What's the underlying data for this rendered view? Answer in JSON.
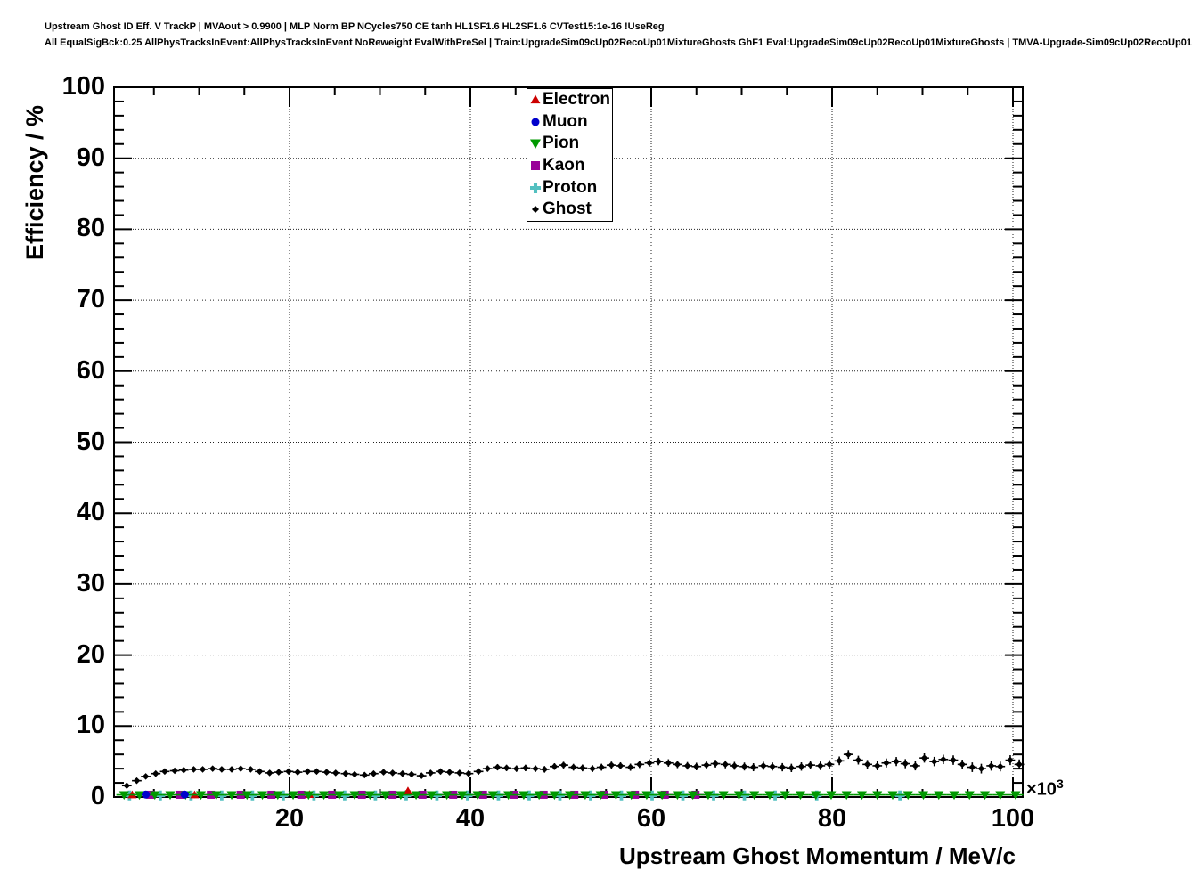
{
  "header": {
    "line1": "Upstream Ghost ID Eff. V TrackP | MVAout > 0.9900 | MLP Norm BP NCycles750 CE tanh HL1SF1.6 HL2SF1.6 CVTest15:1e-16 !UseReg",
    "line2": "All EqualSigBck:0.25 AllPhysTracksInEvent:AllPhysTracksInEvent NoReweight EvalWithPreSel | Train:UpgradeSim09cUp02RecoUp01MixtureGhosts GhF1 Eval:UpgradeSim09cUp02RecoUp01MixtureGhosts | TMVA-Upgrade-Sim09cUp02RecoUp01"
  },
  "axes": {
    "y_title": "Efficiency / %",
    "x_title": "Upstream Ghost Momentum / MeV/c",
    "x_multiplier": "×10",
    "x_exponent": "3",
    "y_major_ticks": [
      0,
      10,
      20,
      30,
      40,
      50,
      60,
      70,
      80,
      90,
      100
    ],
    "y_minor_step": 2,
    "x_major_ticks": [
      20,
      40,
      60,
      80,
      100
    ],
    "x_minor_step": 5
  },
  "chart_data": {
    "type": "scatter",
    "title": "",
    "xlabel": "Upstream Ghost Momentum / MeV/c",
    "x_unit_multiplier": 1000,
    "ylabel": "Efficiency / %",
    "xlim": [
      0.6,
      101.1
    ],
    "ylim": [
      0,
      100
    ],
    "grid": "dotted",
    "legend_position": "top-center",
    "series": [
      {
        "name": "Electron",
        "color": "#cc0000",
        "marker": "triangle-up",
        "xerr": 0.3,
        "yerr": 0.45,
        "points": [
          [
            2.6,
            0.3
          ],
          [
            9.5,
            0.3
          ],
          [
            22.2,
            0.35
          ],
          [
            33.1,
            0.85
          ]
        ]
      },
      {
        "name": "Muon",
        "color": "#0000cc",
        "marker": "circle",
        "xerr": 0.45,
        "yerr": 0.15,
        "points": [
          [
            4.1,
            0.35
          ],
          [
            8.4,
            0.35
          ]
        ]
      },
      {
        "name": "Pion",
        "color": "#009900",
        "marker": "triangle-down",
        "xerr": 0.85,
        "yerr": 0.12,
        "y": 0.3,
        "x": [
          1.7,
          3.4,
          5.1,
          6.8,
          8.5,
          10.2,
          11.9,
          13.6,
          15.3,
          17.0,
          18.7,
          20.4,
          22.1,
          23.8,
          25.5,
          27.2,
          28.9,
          30.6,
          32.3,
          34.0,
          35.7,
          37.4,
          39.1,
          40.8,
          42.5,
          44.2,
          45.9,
          47.6,
          49.3,
          51.0,
          52.7,
          54.4,
          56.1,
          57.8,
          59.5,
          61.2,
          62.9,
          64.6,
          66.3,
          68.0,
          69.7,
          71.4,
          73.1,
          74.8,
          76.5,
          78.2,
          79.9,
          81.6,
          83.3,
          85.0,
          86.7,
          88.4,
          90.1,
          91.8,
          93.5,
          95.2,
          96.9,
          98.6,
          100.3
        ]
      },
      {
        "name": "Kaon",
        "color": "#990099",
        "marker": "square",
        "xerr": 1.68,
        "yerr": 0.12,
        "y": 0.32,
        "x": [
          4.6,
          7.9,
          11.3,
          14.6,
          18.0,
          21.3,
          24.7,
          28.0,
          31.4,
          34.7,
          38.1,
          41.4,
          44.8,
          48.1,
          51.5,
          54.8,
          58.2,
          61.5,
          64.9
        ]
      },
      {
        "name": "Proton",
        "color": "#53c0c0",
        "marker": "cross",
        "xerr": 0.4,
        "yerr": 0.12,
        "y": 0.22,
        "x": [
          2.3,
          5.7,
          9.1,
          12.5,
          15.9,
          19.3,
          22.7,
          26.1,
          29.5,
          32.9,
          36.3,
          39.7,
          43.1,
          46.5,
          49.9,
          53.3,
          56.7,
          60.1,
          63.5,
          66.9,
          70.3,
          73.7,
          78.3,
          87.5
        ]
      },
      {
        "name": "Ghost",
        "color": "#000000",
        "marker": "diamond",
        "xerr": 0.53,
        "yerr_ramp": [
          0.25,
          0.7
        ],
        "points": [
          [
            2.0,
            1.6
          ],
          [
            3.1,
            2.3
          ],
          [
            4.1,
            2.9
          ],
          [
            5.2,
            3.3
          ],
          [
            6.2,
            3.6
          ],
          [
            7.3,
            3.7
          ],
          [
            8.3,
            3.8
          ],
          [
            9.4,
            3.9
          ],
          [
            10.4,
            3.9
          ],
          [
            11.5,
            4.0
          ],
          [
            12.5,
            3.9
          ],
          [
            13.6,
            3.9
          ],
          [
            14.6,
            4.0
          ],
          [
            15.7,
            3.9
          ],
          [
            16.7,
            3.6
          ],
          [
            17.8,
            3.4
          ],
          [
            18.8,
            3.5
          ],
          [
            19.9,
            3.6
          ],
          [
            20.9,
            3.5
          ],
          [
            22.0,
            3.6
          ],
          [
            23.0,
            3.6
          ],
          [
            24.1,
            3.5
          ],
          [
            25.1,
            3.4
          ],
          [
            26.2,
            3.3
          ],
          [
            27.2,
            3.2
          ],
          [
            28.3,
            3.1
          ],
          [
            29.3,
            3.3
          ],
          [
            30.4,
            3.5
          ],
          [
            31.4,
            3.4
          ],
          [
            32.5,
            3.3
          ],
          [
            33.5,
            3.2
          ],
          [
            34.6,
            3.0
          ],
          [
            35.6,
            3.4
          ],
          [
            36.7,
            3.6
          ],
          [
            37.7,
            3.5
          ],
          [
            38.8,
            3.4
          ],
          [
            39.8,
            3.3
          ],
          [
            40.9,
            3.6
          ],
          [
            41.9,
            4.0
          ],
          [
            43.0,
            4.2
          ],
          [
            44.0,
            4.1
          ],
          [
            45.1,
            4.0
          ],
          [
            46.1,
            4.1
          ],
          [
            47.2,
            4.0
          ],
          [
            48.2,
            3.9
          ],
          [
            49.3,
            4.3
          ],
          [
            50.3,
            4.5
          ],
          [
            51.4,
            4.2
          ],
          [
            52.4,
            4.1
          ],
          [
            53.5,
            4.0
          ],
          [
            54.5,
            4.2
          ],
          [
            55.6,
            4.5
          ],
          [
            56.6,
            4.4
          ],
          [
            57.7,
            4.2
          ],
          [
            58.7,
            4.6
          ],
          [
            59.8,
            4.8
          ],
          [
            60.8,
            5.0
          ],
          [
            61.9,
            4.8
          ],
          [
            62.9,
            4.6
          ],
          [
            64.0,
            4.4
          ],
          [
            65.0,
            4.3
          ],
          [
            66.1,
            4.5
          ],
          [
            67.1,
            4.7
          ],
          [
            68.2,
            4.6
          ],
          [
            69.2,
            4.4
          ],
          [
            70.3,
            4.3
          ],
          [
            71.3,
            4.2
          ],
          [
            72.4,
            4.4
          ],
          [
            73.4,
            4.3
          ],
          [
            74.5,
            4.2
          ],
          [
            75.5,
            4.1
          ],
          [
            76.6,
            4.3
          ],
          [
            77.6,
            4.5
          ],
          [
            78.7,
            4.4
          ],
          [
            79.7,
            4.6
          ],
          [
            80.8,
            5.1
          ],
          [
            81.8,
            6.0
          ],
          [
            82.9,
            5.2
          ],
          [
            83.9,
            4.6
          ],
          [
            85.0,
            4.4
          ],
          [
            86.0,
            4.8
          ],
          [
            87.1,
            5.0
          ],
          [
            88.1,
            4.7
          ],
          [
            89.2,
            4.4
          ],
          [
            90.2,
            5.5
          ],
          [
            91.3,
            5.0
          ],
          [
            92.3,
            5.3
          ],
          [
            93.4,
            5.2
          ],
          [
            94.4,
            4.6
          ],
          [
            95.5,
            4.2
          ],
          [
            96.5,
            4.0
          ],
          [
            97.6,
            4.4
          ],
          [
            98.6,
            4.3
          ],
          [
            99.7,
            5.2
          ],
          [
            100.7,
            4.6
          ]
        ]
      }
    ]
  }
}
